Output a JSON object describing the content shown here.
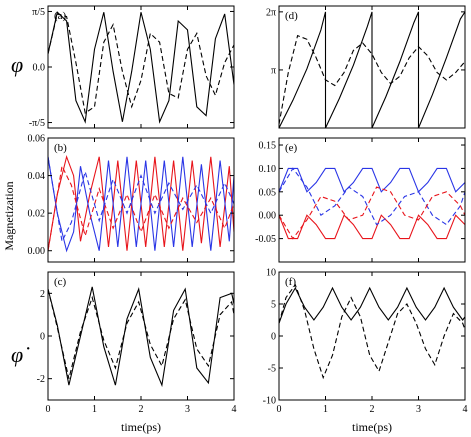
{
  "figure": {
    "x_axis_label": "time(ps)",
    "y_axis_label_left_middle": "Magnetization",
    "symbol_top_left": "φ",
    "symbol_bottom_left": "φ̇"
  },
  "colors": {
    "black": "#000000",
    "red": "#e8141b",
    "blue": "#2a35e6"
  },
  "chart_data": [
    {
      "type": "line",
      "panel": "(a)",
      "xlim": [
        0,
        4
      ],
      "ylim": [
        -0.69,
        0.69
      ],
      "x_ticks": [
        0,
        1,
        2,
        3,
        4
      ],
      "y_ticks": [
        -0.6283,
        0,
        0.6283
      ],
      "y_tick_labels": [
        "-π/5",
        "0.0",
        "π/5"
      ],
      "series": [
        {
          "style": "solid",
          "color": "#000000",
          "x": [
            0,
            0.2,
            0.4,
            0.6,
            0.8,
            1.0,
            1.2,
            1.4,
            1.6,
            1.8,
            2.0,
            2.2,
            2.4,
            2.6,
            2.8,
            3.0,
            3.2,
            3.4,
            3.6,
            3.8,
            4.0
          ],
          "y": [
            0.15,
            0.62,
            0.52,
            -0.38,
            -0.62,
            0.2,
            0.62,
            -0.05,
            -0.62,
            -0.05,
            0.62,
            0.2,
            -0.62,
            -0.38,
            0.52,
            0.42,
            -0.45,
            -0.55,
            0.32,
            0.6,
            -0.2
          ]
        },
        {
          "style": "dashed",
          "color": "#000000",
          "x": [
            0,
            0.2,
            0.4,
            0.6,
            0.8,
            1.0,
            1.2,
            1.4,
            1.6,
            1.8,
            2.0,
            2.2,
            2.4,
            2.6,
            2.8,
            3.0,
            3.2,
            3.4,
            3.6,
            3.8,
            4.0
          ],
          "y": [
            0.15,
            0.6,
            0.57,
            0.05,
            -0.52,
            -0.45,
            0.28,
            0.48,
            -0.05,
            -0.45,
            -0.15,
            0.38,
            0.28,
            -0.3,
            -0.35,
            0.2,
            0.38,
            -0.1,
            -0.32,
            0.05,
            0.25
          ]
        }
      ]
    },
    {
      "type": "line",
      "panel": "(b)",
      "xlim": [
        0,
        4
      ],
      "ylim": [
        -0.006,
        0.06
      ],
      "x_ticks": [
        0,
        1,
        2,
        3,
        4
      ],
      "y_ticks": [
        0,
        0.02,
        0.04,
        0.06
      ],
      "y_tick_labels": [
        "0.00",
        "0.02",
        "0.04",
        "0.06"
      ],
      "series": [
        {
          "style": "solid",
          "color": "#e8141b",
          "x": [
            0,
            0.2,
            0.4,
            0.55,
            0.7,
            0.9,
            1.1,
            1.3,
            1.5,
            1.7,
            1.9,
            2.1,
            2.3,
            2.5,
            2.7,
            2.9,
            3.1,
            3.3,
            3.5,
            3.7,
            3.9,
            4.0
          ],
          "y": [
            0.0,
            0.03,
            0.05,
            0.04,
            0.005,
            0.03,
            0.05,
            0.002,
            0.048,
            0.0,
            0.048,
            0.002,
            0.05,
            0.002,
            0.048,
            0.0,
            0.048,
            0.004,
            0.05,
            0.002,
            0.045,
            0.01
          ]
        },
        {
          "style": "solid",
          "color": "#2a35e6",
          "x": [
            0,
            0.2,
            0.4,
            0.55,
            0.7,
            0.9,
            1.1,
            1.3,
            1.5,
            1.7,
            1.9,
            2.1,
            2.3,
            2.5,
            2.7,
            2.9,
            3.1,
            3.3,
            3.5,
            3.7,
            3.9,
            4.0
          ],
          "y": [
            0.05,
            0.02,
            0.0,
            0.01,
            0.045,
            0.02,
            0.0,
            0.048,
            0.002,
            0.05,
            0.002,
            0.048,
            0.0,
            0.048,
            0.002,
            0.05,
            0.002,
            0.046,
            0.0,
            0.048,
            0.005,
            0.04
          ]
        },
        {
          "style": "dashed",
          "color": "#e8141b",
          "x": [
            0,
            0.3,
            0.5,
            0.8,
            1.1,
            1.4,
            1.7,
            2.0,
            2.3,
            2.6,
            2.9,
            3.2,
            3.5,
            3.8,
            4.0
          ],
          "y": [
            0.0,
            0.045,
            0.035,
            0.008,
            0.033,
            0.012,
            0.03,
            0.01,
            0.03,
            0.012,
            0.028,
            0.015,
            0.028,
            0.012,
            0.025
          ]
        },
        {
          "style": "dashed",
          "color": "#2a35e6",
          "x": [
            0,
            0.3,
            0.5,
            0.8,
            1.1,
            1.4,
            1.7,
            2.0,
            2.3,
            2.6,
            2.9,
            3.2,
            3.5,
            3.8,
            4.0
          ],
          "y": [
            0.05,
            0.005,
            0.015,
            0.042,
            0.016,
            0.038,
            0.02,
            0.04,
            0.02,
            0.036,
            0.022,
            0.035,
            0.02,
            0.036,
            0.025
          ]
        }
      ]
    },
    {
      "type": "line",
      "panel": "(c)",
      "xlim": [
        0,
        4
      ],
      "ylim": [
        -3,
        3
      ],
      "x_ticks": [
        0,
        1,
        2,
        3,
        4
      ],
      "x_tick_labels": [
        "0",
        "1",
        "2",
        "3",
        "4"
      ],
      "y_ticks": [
        -2,
        0,
        2
      ],
      "y_tick_labels": [
        "-2",
        "0",
        "2"
      ],
      "series": [
        {
          "style": "solid",
          "color": "#000000",
          "x": [
            0,
            0.2,
            0.45,
            0.7,
            0.95,
            1.2,
            1.45,
            1.7,
            1.95,
            2.2,
            2.45,
            2.7,
            2.95,
            3.2,
            3.45,
            3.7,
            3.95,
            4.0
          ],
          "y": [
            2.2,
            0.5,
            -2.3,
            0.0,
            2.3,
            -0.5,
            -2.3,
            0.8,
            2.2,
            -1.0,
            -2.3,
            1.2,
            2.2,
            -1.5,
            -2.2,
            1.8,
            2.0,
            1.5
          ]
        },
        {
          "style": "dashed",
          "color": "#000000",
          "x": [
            0,
            0.2,
            0.45,
            0.7,
            0.95,
            1.2,
            1.45,
            1.7,
            1.95,
            2.2,
            2.45,
            2.7,
            2.95,
            3.2,
            3.45,
            3.7,
            3.95,
            4.0
          ],
          "y": [
            2.2,
            0.4,
            -2.0,
            0.2,
            1.8,
            -0.2,
            -1.5,
            0.6,
            1.6,
            -0.4,
            -1.4,
            0.8,
            1.7,
            -0.6,
            -1.4,
            1.0,
            1.6,
            1.0
          ]
        }
      ]
    },
    {
      "type": "line",
      "panel": "(d)",
      "xlim": [
        0,
        4
      ],
      "ylim": [
        0,
        6.6
      ],
      "x_ticks": [
        0,
        1,
        2,
        3,
        4
      ],
      "y_ticks": [
        3.1416,
        6.2832
      ],
      "y_tick_labels": [
        "π",
        "2π"
      ],
      "series": [
        {
          "style": "solid",
          "color": "#000000",
          "x": [
            0,
            0.3,
            0.6,
            0.9,
            1.0,
            1.0,
            1.3,
            1.6,
            1.9,
            2.0,
            2.0,
            2.3,
            2.6,
            2.9,
            3.0,
            3.0,
            3.3,
            3.6,
            3.9,
            4.0
          ],
          "y": [
            0,
            1.5,
            3.2,
            5.3,
            6.28,
            0,
            1.6,
            3.4,
            5.5,
            6.28,
            0,
            1.7,
            3.6,
            5.7,
            6.28,
            0,
            1.8,
            3.8,
            5.9,
            6.28
          ]
        },
        {
          "style": "dashed",
          "color": "#000000",
          "x": [
            0,
            0.2,
            0.4,
            0.6,
            0.8,
            1.0,
            1.2,
            1.4,
            1.6,
            1.8,
            2.0,
            2.2,
            2.4,
            2.6,
            2.8,
            3.0,
            3.2,
            3.4,
            3.6,
            3.8,
            4.0
          ],
          "y": [
            0.2,
            3.0,
            5.0,
            4.8,
            3.8,
            2.6,
            2.3,
            3.0,
            4.2,
            4.6,
            4.0,
            3.0,
            2.4,
            2.8,
            3.8,
            4.4,
            3.9,
            3.0,
            2.6,
            3.0,
            3.6
          ]
        }
      ]
    },
    {
      "type": "line",
      "panel": "(e)",
      "xlim": [
        0,
        4
      ],
      "ylim": [
        -0.1,
        0.165
      ],
      "x_ticks": [
        0,
        1,
        2,
        3,
        4
      ],
      "y_ticks": [
        -0.05,
        0,
        0.05,
        0.1,
        0.15
      ],
      "y_tick_labels": [
        "-0.05",
        "0.00",
        "0.05",
        "0.10",
        "0.15"
      ],
      "series": [
        {
          "style": "solid",
          "color": "#2a35e6",
          "x": [
            0,
            0.2,
            0.4,
            0.6,
            0.8,
            1.0,
            1.2,
            1.4,
            1.6,
            1.8,
            2.0,
            2.2,
            2.4,
            2.6,
            2.8,
            3.0,
            3.2,
            3.4,
            3.6,
            3.8,
            4.0
          ],
          "y": [
            0.05,
            0.1,
            0.1,
            0.05,
            0.07,
            0.1,
            0.1,
            0.05,
            0.07,
            0.1,
            0.1,
            0.05,
            0.07,
            0.1,
            0.1,
            0.05,
            0.07,
            0.1,
            0.1,
            0.05,
            0.07
          ]
        },
        {
          "style": "solid",
          "color": "#e8141b",
          "x": [
            0,
            0.2,
            0.4,
            0.6,
            0.8,
            1.0,
            1.2,
            1.4,
            1.6,
            1.8,
            2.0,
            2.2,
            2.4,
            2.6,
            2.8,
            3.0,
            3.2,
            3.4,
            3.6,
            3.8,
            4.0
          ],
          "y": [
            0.0,
            -0.05,
            -0.05,
            0.0,
            -0.02,
            -0.05,
            -0.05,
            0.0,
            -0.02,
            -0.05,
            -0.05,
            0.0,
            -0.02,
            -0.05,
            -0.05,
            0.0,
            -0.02,
            -0.05,
            -0.05,
            0.0,
            -0.02
          ]
        },
        {
          "style": "dashed",
          "color": "#2a35e6",
          "x": [
            0,
            0.3,
            0.6,
            0.9,
            1.2,
            1.5,
            1.8,
            2.1,
            2.4,
            2.7,
            3.0,
            3.3,
            3.6,
            3.9,
            4.0
          ],
          "y": [
            0.05,
            0.1,
            0.06,
            0.0,
            0.02,
            0.06,
            0.04,
            -0.02,
            0.0,
            0.04,
            0.05,
            0.0,
            -0.02,
            0.02,
            0.05
          ]
        },
        {
          "style": "dashed",
          "color": "#e8141b",
          "x": [
            0,
            0.3,
            0.6,
            0.9,
            1.2,
            1.5,
            1.8,
            2.1,
            2.4,
            2.7,
            3.0,
            3.3,
            3.6,
            3.9,
            4.0
          ],
          "y": [
            0.0,
            -0.05,
            -0.01,
            0.04,
            0.03,
            -0.01,
            0.0,
            0.06,
            0.05,
            0.0,
            -0.01,
            0.04,
            0.05,
            0.02,
            0.0
          ]
        }
      ]
    },
    {
      "type": "line",
      "panel": "(f)",
      "xlim": [
        0,
        4
      ],
      "ylim": [
        -10,
        10
      ],
      "x_ticks": [
        0,
        1,
        2,
        3,
        4
      ],
      "x_tick_labels": [
        "0",
        "1",
        "2",
        "3",
        "4"
      ],
      "y_ticks": [
        -10,
        -5,
        0,
        5,
        10
      ],
      "y_tick_labels": [
        "-10",
        "-5",
        "0",
        "5",
        "10"
      ],
      "series": [
        {
          "style": "solid",
          "color": "#000000",
          "x": [
            0,
            0.15,
            0.35,
            0.55,
            0.75,
            0.95,
            1.15,
            1.35,
            1.55,
            1.75,
            1.95,
            2.15,
            2.35,
            2.55,
            2.75,
            2.95,
            3.15,
            3.35,
            3.55,
            3.75,
            3.95,
            4.0
          ],
          "y": [
            2.0,
            5.0,
            7.5,
            4.5,
            2.5,
            4.5,
            7.5,
            4.5,
            2.5,
            4.5,
            7.5,
            4.5,
            2.5,
            4.5,
            7.5,
            4.5,
            2.5,
            4.5,
            7.5,
            4.5,
            2.5,
            3.0
          ]
        },
        {
          "style": "dashed",
          "color": "#000000",
          "x": [
            0,
            0.15,
            0.35,
            0.55,
            0.75,
            0.95,
            1.15,
            1.35,
            1.55,
            1.75,
            1.95,
            2.15,
            2.35,
            2.55,
            2.75,
            2.95,
            3.15,
            3.35,
            3.55,
            3.75,
            3.95,
            4.0
          ],
          "y": [
            2.0,
            6.0,
            8.0,
            4.0,
            -2.0,
            -6.5,
            -3.0,
            3.0,
            6.0,
            3.0,
            -3.0,
            -5.5,
            -1.0,
            3.5,
            5.0,
            2.0,
            -2.0,
            -4.5,
            0.0,
            3.5,
            2.0,
            1.0
          ]
        }
      ]
    }
  ]
}
